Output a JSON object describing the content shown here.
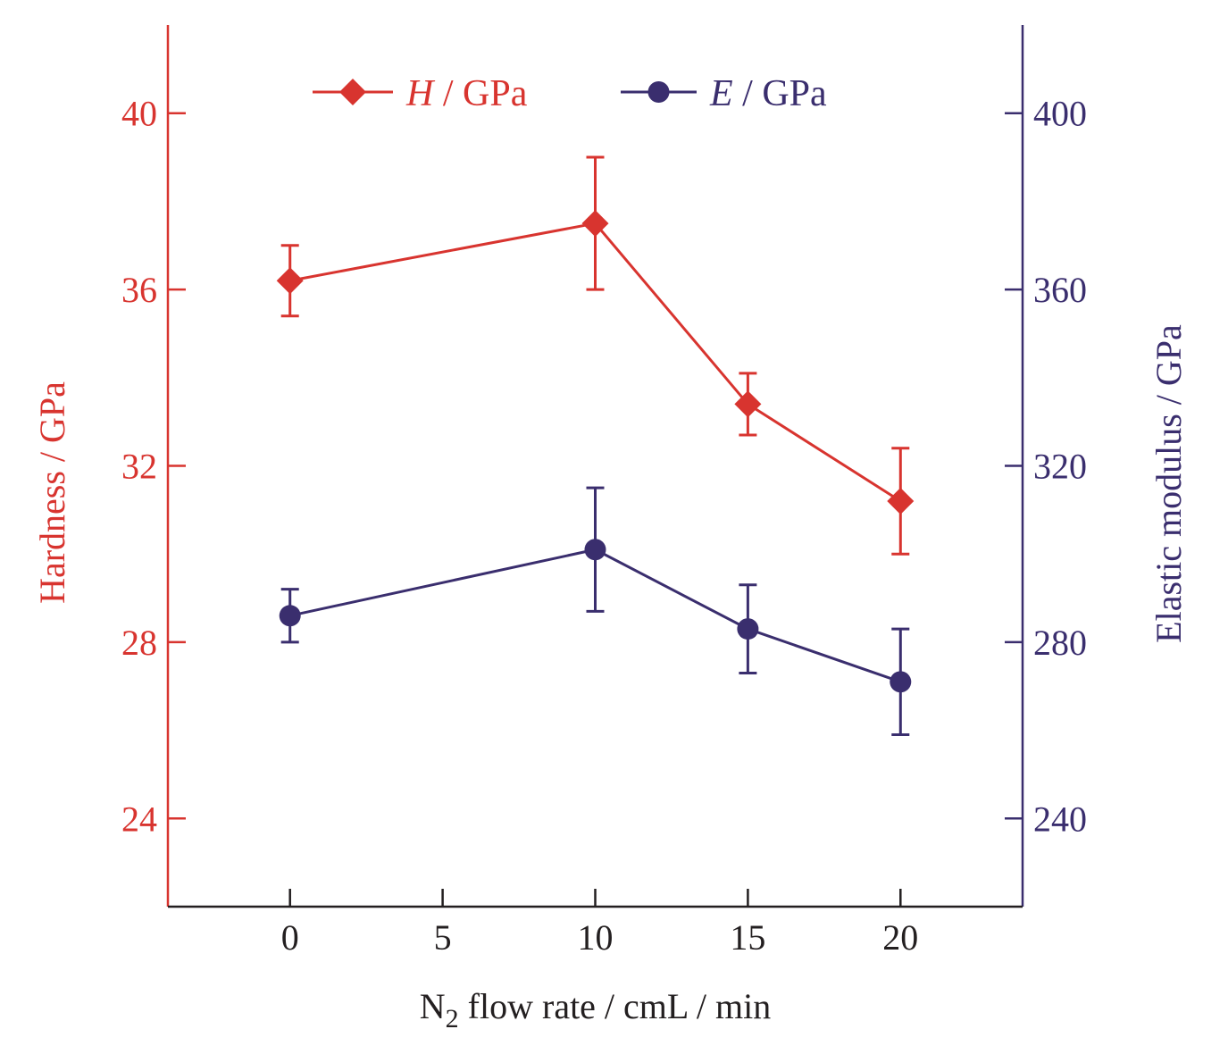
{
  "chart_data": {
    "type": "line",
    "x_axis": {
      "label_prefix": "N",
      "label_subscript": "2",
      "label_suffix": " flow rate / cmL / min",
      "range": [
        -4,
        24
      ],
      "ticks": [
        0,
        5,
        10,
        15,
        20
      ]
    },
    "y_left": {
      "label": "Hardness / GPa",
      "range": [
        22,
        42
      ],
      "ticks": [
        24,
        28,
        32,
        36,
        40
      ],
      "color": "#d8342f"
    },
    "y_right": {
      "label": "Elastic modulus / GPa",
      "range": [
        220,
        420
      ],
      "ticks": [
        240,
        280,
        320,
        360,
        400
      ],
      "color": "#3a2e6e"
    },
    "series": [
      {
        "symbol": "H",
        "unit": " / GPa",
        "axis": "left",
        "marker": "diamond",
        "color": "#d8342f",
        "x": [
          0,
          10,
          15,
          20
        ],
        "y": [
          36.2,
          37.5,
          33.4,
          31.2
        ],
        "err_low": [
          35.4,
          36.0,
          32.7,
          30.0
        ],
        "err_high": [
          37.0,
          39.0,
          34.1,
          32.4
        ]
      },
      {
        "symbol": "E",
        "unit": " / GPa",
        "axis": "right",
        "marker": "circle",
        "color": "#3a2e6e",
        "x": [
          0,
          10,
          15,
          20
        ],
        "y": [
          286,
          301,
          283,
          271
        ],
        "err_low": [
          280,
          287,
          273,
          259
        ],
        "err_high": [
          292,
          315,
          293,
          283
        ]
      }
    ],
    "legend_position": "top-center",
    "grid": false
  }
}
